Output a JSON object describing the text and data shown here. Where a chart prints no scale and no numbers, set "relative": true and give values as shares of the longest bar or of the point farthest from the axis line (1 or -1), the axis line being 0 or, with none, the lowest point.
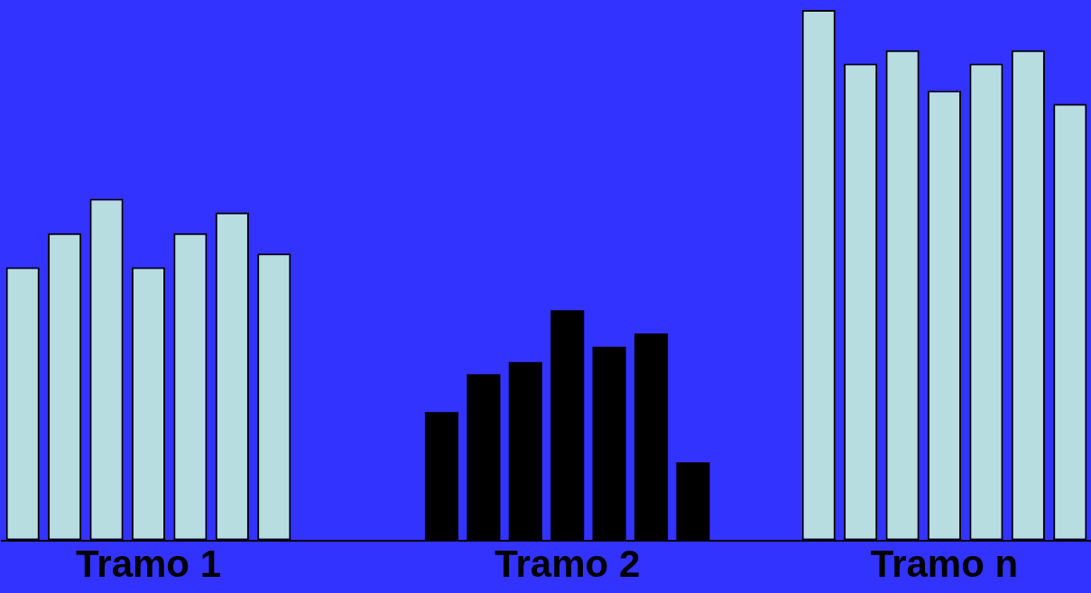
{
  "chart_data": {
    "type": "bar",
    "relative": true,
    "categories": [
      null,
      null,
      null,
      "Tramo 1",
      null,
      null,
      null,
      null,
      null,
      null,
      null,
      null,
      null,
      "Tramo 2",
      null,
      null,
      null,
      null,
      null,
      null,
      null,
      null,
      "Tramo n",
      null,
      null,
      null
    ],
    "values": [
      0.515,
      0.579,
      0.644,
      0.515,
      0.579,
      0.618,
      0.541,
      null,
      null,
      null,
      0.242,
      0.313,
      0.336,
      0.434,
      0.365,
      0.39,
      0.147,
      null,
      null,
      1,
      0.899,
      0.924,
      0.848,
      0.899,
      0.924,
      0.823
    ],
    "colors": [
      "#b8dde0",
      "#b8dde0",
      "#b8dde0",
      "#b8dde0",
      "#b8dde0",
      "#b8dde0",
      "#b8dde0",
      null,
      null,
      null,
      "#000000",
      "#000000",
      "#000000",
      "#000000",
      "#000000",
      "#000000",
      "#000000",
      null,
      null,
      "#b8dde0",
      "#b8dde0",
      "#b8dde0",
      "#b8dde0",
      "#b8dde0",
      "#b8dde0",
      "#b8dde0"
    ]
  }
}
